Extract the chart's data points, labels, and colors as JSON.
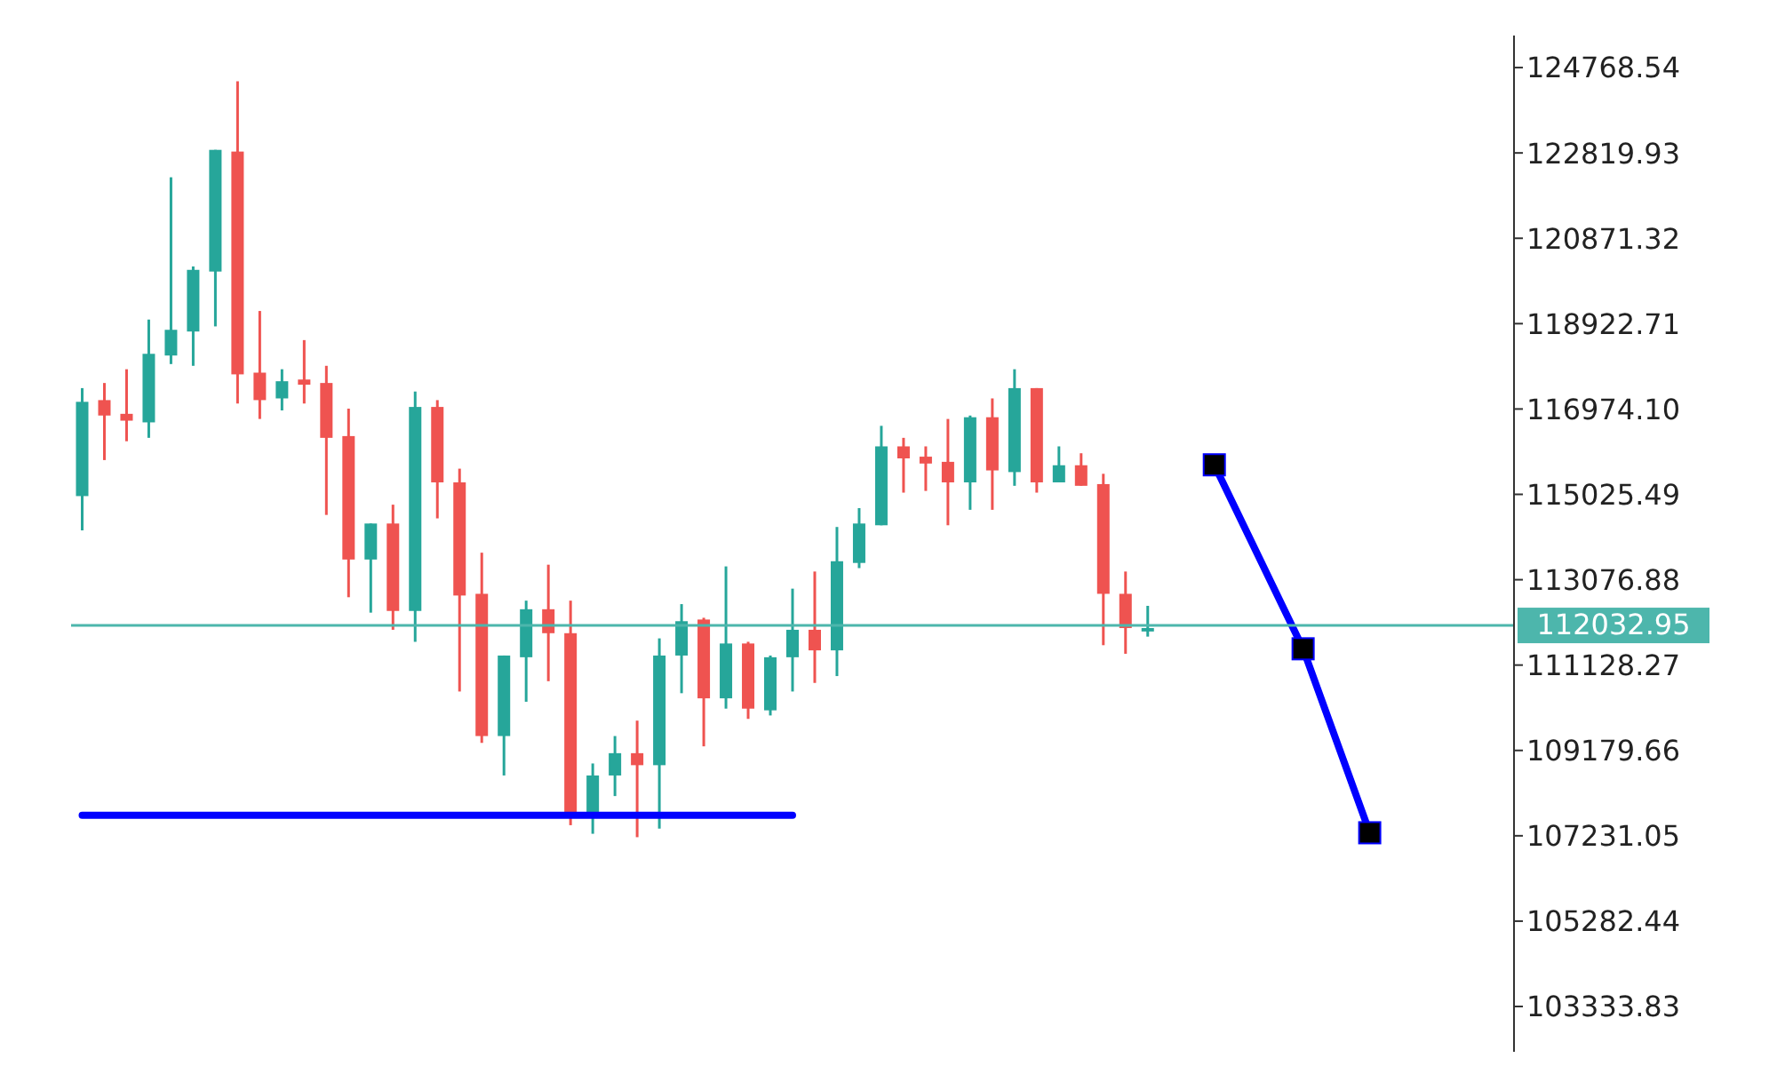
{
  "chart_data": {
    "type": "candlestick",
    "categories": [
      null,
      null,
      null,
      null,
      null,
      null,
      null,
      null,
      null,
      null,
      null,
      null,
      null,
      null,
      null,
      null,
      null,
      null,
      null,
      null,
      null,
      null,
      null,
      null,
      null,
      null,
      null,
      null,
      null,
      null,
      null,
      null,
      null,
      null,
      null,
      null,
      null,
      null,
      null,
      null,
      null,
      null,
      null,
      null,
      null,
      null,
      null,
      null,
      null,
      null,
      null,
      null,
      null,
      null,
      null,
      null,
      null,
      null,
      null,
      null,
      null,
      null,
      null,
      null,
      null
    ],
    "ohlc": [
      [
        114986,
        117451,
        114203,
        117138
      ],
      [
        117177,
        117568,
        115808,
        116825
      ],
      [
        116864,
        117882,
        116238,
        116708
      ],
      [
        116669,
        119016,
        116316,
        118234
      ],
      [
        118195,
        122264,
        118000,
        118782
      ],
      [
        118743,
        120229,
        117960,
        120151
      ],
      [
        120112,
        122890,
        118860,
        122890
      ],
      [
        122851,
        124456,
        117099,
        117765
      ],
      [
        117804,
        119212,
        116747,
        117177
      ],
      [
        117216,
        117882,
        116942,
        117608
      ],
      [
        117647,
        118547,
        117099,
        117529
      ],
      [
        117568,
        117960,
        114556,
        116316
      ],
      [
        116356,
        116982,
        112677,
        113538
      ],
      [
        113538,
        114360,
        112325,
        114360
      ],
      [
        114360,
        114790,
        111934,
        112364
      ],
      [
        112364,
        117373,
        111660,
        117021
      ],
      [
        117021,
        117177,
        114477,
        115299
      ],
      [
        115299,
        115612,
        110525,
        112716
      ],
      [
        112755,
        113694,
        109352,
        109508
      ],
      [
        109508,
        111346,
        108608,
        111346
      ],
      [
        111307,
        112599,
        110291,
        112403
      ],
      [
        112403,
        113420,
        110760,
        111856
      ],
      [
        111856,
        112599,
        107473,
        107708
      ],
      [
        107747,
        108882,
        107277,
        108608
      ],
      [
        108608,
        109508,
        108138,
        109117
      ],
      [
        109117,
        109860,
        107199,
        108843
      ],
      [
        108843,
        111738,
        107395,
        111346
      ],
      [
        111346,
        112520,
        110486,
        112130
      ],
      [
        112168,
        112208,
        109273,
        110369
      ],
      [
        110369,
        113381,
        110134,
        111621
      ],
      [
        111621,
        111660,
        109900,
        110134
      ],
      [
        110095,
        111346,
        109978,
        111307
      ],
      [
        111307,
        112873,
        110525,
        111934
      ],
      [
        111934,
        113264,
        110721,
        111464
      ],
      [
        111464,
        114281,
        110877,
        113499
      ],
      [
        113460,
        114712,
        113342,
        114360
      ],
      [
        114320,
        116590,
        114320,
        116121
      ],
      [
        116121,
        116316,
        115065,
        115847
      ],
      [
        115886,
        116121,
        115104,
        115729
      ],
      [
        115768,
        116747,
        114320,
        115299
      ],
      [
        115299,
        116825,
        114673,
        116786
      ],
      [
        116786,
        117216,
        114673,
        115572
      ],
      [
        115534,
        117882,
        115221,
        117451
      ],
      [
        117451,
        117451,
        115065,
        115299
      ],
      [
        115299,
        116121,
        115299,
        115690
      ],
      [
        115690,
        115964,
        115221,
        115221
      ],
      [
        115260,
        115495,
        111582,
        112755
      ],
      [
        112755,
        113264,
        111386,
        111973
      ],
      [
        111895,
        112481,
        111778,
        111973
      ],
      null,
      null,
      null,
      null,
      null,
      null,
      null,
      null,
      null,
      null,
      null,
      null,
      null,
      null,
      null,
      null
    ],
    "colors": [
      "#26a69a",
      "#ef5350",
      "#ef5350",
      "#26a69a",
      "#26a69a",
      "#26a69a",
      "#26a69a",
      "#ef5350",
      "#ef5350",
      "#26a69a",
      "#ef5350",
      "#ef5350",
      "#ef5350",
      "#26a69a",
      "#ef5350",
      "#26a69a",
      "#ef5350",
      "#ef5350",
      "#ef5350",
      "#26a69a",
      "#26a69a",
      "#ef5350",
      "#ef5350",
      "#26a69a",
      "#26a69a",
      "#ef5350",
      "#26a69a",
      "#26a69a",
      "#ef5350",
      "#26a69a",
      "#ef5350",
      "#26a69a",
      "#26a69a",
      "#ef5350",
      "#26a69a",
      "#26a69a",
      "#26a69a",
      "#ef5350",
      "#ef5350",
      "#ef5350",
      "#26a69a",
      "#ef5350",
      "#26a69a",
      "#ef5350",
      "#26a69a",
      "#ef5350",
      "#ef5350",
      "#ef5350",
      "#26a69a",
      null,
      null,
      null,
      null,
      null,
      null,
      null,
      null,
      null,
      null,
      null,
      null,
      null,
      null,
      null,
      null
    ],
    "series": [
      {
        "type": "line",
        "color": "#0000ff",
        "marker": "none",
        "values": [
          107700,
          107700,
          107700,
          107700,
          107700,
          107700,
          107700,
          107700,
          107700,
          107700,
          107700,
          107700,
          107700,
          107700,
          107700,
          107700,
          107700,
          107700,
          107700,
          107700,
          107700,
          107700,
          107700,
          107700,
          107700,
          107700,
          107700,
          107700,
          107700,
          107700,
          107700,
          107700,
          107700,
          null,
          null,
          null,
          null,
          null,
          null,
          null,
          null,
          null,
          null,
          null,
          null,
          null,
          null,
          null,
          null,
          null,
          null,
          null,
          null,
          null,
          null,
          null,
          null,
          null,
          null,
          null,
          null,
          null,
          null,
          null,
          null
        ]
      },
      {
        "type": "line",
        "color": "#0000ff",
        "marker": "square",
        "values": [
          null,
          null,
          null,
          null,
          null,
          null,
          null,
          null,
          null,
          null,
          null,
          null,
          null,
          null,
          null,
          null,
          null,
          null,
          null,
          null,
          null,
          null,
          null,
          null,
          null,
          null,
          null,
          null,
          null,
          null,
          null,
          null,
          null,
          null,
          null,
          null,
          null,
          null,
          null,
          null,
          null,
          null,
          null,
          null,
          null,
          null,
          null,
          null,
          null,
          null,
          null,
          115700,
          null,
          null,
          null,
          111500,
          null,
          null,
          107300,
          null,
          null,
          null,
          null,
          null,
          null
        ]
      }
    ],
    "ylim": [
      102300,
      125500
    ],
    "yticks": [
      103333.83,
      105282.44,
      107231.05,
      109179.66,
      111128.27,
      113076.88,
      115025.49,
      {
        "value": 116974.1,
        "label": "116974.10"
      },
      118922.71,
      120871.32,
      122819.93,
      124768.54
    ],
    "ref_lines": [
      {
        "axis": "y",
        "value": 112032.95,
        "label": "112032.95",
        "color": "#4db6ac"
      }
    ],
    "tick_labels": "y"
  }
}
